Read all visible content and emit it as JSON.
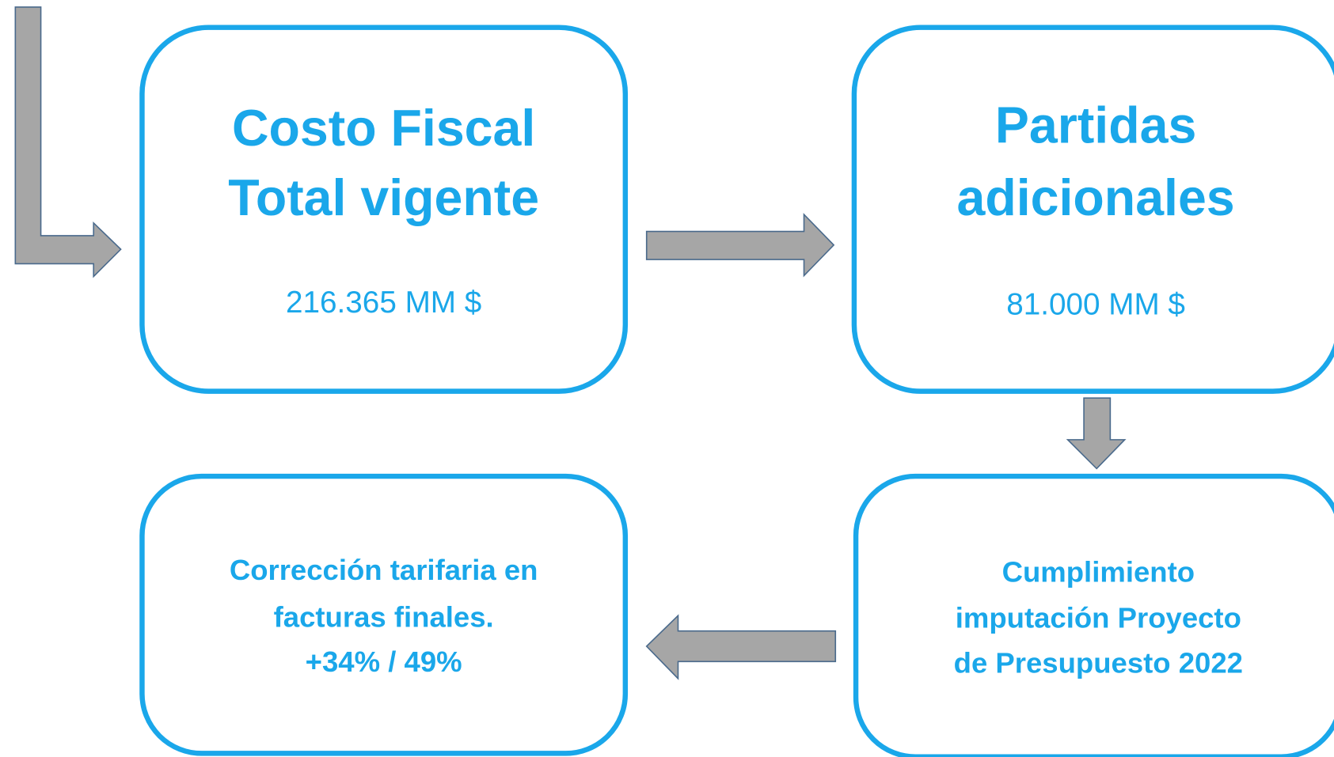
{
  "nodes": [
    {
      "lines": [
        "Costo Fiscal",
        "Total vigente"
      ],
      "value": "216.365 MM $"
    },
    {
      "lines": [
        "Partidas",
        "adicionales"
      ],
      "value": "81.000 MM $"
    },
    {
      "lines": [
        "Cumplimiento",
        "imputación Proyecto",
        "de Presupuesto 2022"
      ]
    },
    {
      "lines": [
        "Corrección tarifaria en",
        "facturas finales.",
        "+34% / 49%"
      ]
    }
  ]
}
